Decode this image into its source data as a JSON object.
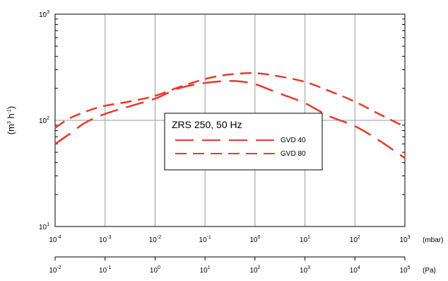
{
  "chart_data": {
    "type": "line",
    "title": "",
    "ylabel": {
      "base": "(m",
      "sup1": "3",
      "mid": " h",
      "sup2": "-1",
      "end": ")"
    },
    "y_scale": "log",
    "ylim": [
      10,
      1000
    ],
    "y_ticks": [
      {
        "base": "10",
        "exp": "1",
        "value": 10
      },
      {
        "base": "10",
        "exp": "2",
        "value": 100
      },
      {
        "base": "10",
        "exp": "3",
        "value": 1000
      }
    ],
    "x_scale": "log",
    "xlim": [
      0.0001,
      1000
    ],
    "x_unit_top": "(mbar)",
    "x_ticks_top": [
      {
        "base": "10",
        "exp": "-4",
        "value": 0.0001
      },
      {
        "base": "10",
        "exp": "-3",
        "value": 0.001
      },
      {
        "base": "10",
        "exp": "-2",
        "value": 0.01
      },
      {
        "base": "10",
        "exp": "-1",
        "value": 0.1
      },
      {
        "base": "10",
        "exp": "0",
        "value": 1
      },
      {
        "base": "10",
        "exp": "1",
        "value": 10
      },
      {
        "base": "10",
        "exp": "2",
        "value": 100
      },
      {
        "base": "10",
        "exp": "3",
        "value": 1000
      }
    ],
    "x_unit_bottom": "(Pa)",
    "x_ticks_bottom": [
      {
        "base": "10",
        "exp": "-2"
      },
      {
        "base": "10",
        "exp": "-1"
      },
      {
        "base": "10",
        "exp": "0"
      },
      {
        "base": "10",
        "exp": "1"
      },
      {
        "base": "10",
        "exp": "2"
      },
      {
        "base": "10",
        "exp": "3"
      },
      {
        "base": "10",
        "exp": "4"
      },
      {
        "base": "10",
        "exp": "5"
      }
    ],
    "grid": true,
    "legend": {
      "title": "ZRS 250, 50 Hz",
      "placement": "center"
    },
    "series": [
      {
        "name": "GVD 40",
        "color": "#e8392c",
        "dash": "long",
        "points": [
          [
            0.0001,
            60
          ],
          [
            0.0002,
            75
          ],
          [
            0.0004,
            95
          ],
          [
            0.001,
            115
          ],
          [
            0.003,
            135
          ],
          [
            0.01,
            160
          ],
          [
            0.03,
            200
          ],
          [
            0.1,
            225
          ],
          [
            0.3,
            235
          ],
          [
            0.6,
            230
          ],
          [
            1,
            220
          ],
          [
            3,
            180
          ],
          [
            10,
            145
          ],
          [
            30,
            110
          ],
          [
            100,
            88
          ],
          [
            300,
            65
          ],
          [
            1000,
            44
          ]
        ]
      },
      {
        "name": "GVD 80",
        "color": "#e8392c",
        "dash": "medium",
        "points": [
          [
            0.0001,
            85
          ],
          [
            0.0002,
            105
          ],
          [
            0.0005,
            125
          ],
          [
            0.001,
            137
          ],
          [
            0.003,
            150
          ],
          [
            0.01,
            170
          ],
          [
            0.03,
            205
          ],
          [
            0.1,
            245
          ],
          [
            0.3,
            270
          ],
          [
            1,
            278
          ],
          [
            3,
            260
          ],
          [
            10,
            230
          ],
          [
            30,
            190
          ],
          [
            100,
            150
          ],
          [
            300,
            115
          ],
          [
            1000,
            87
          ]
        ]
      }
    ]
  }
}
